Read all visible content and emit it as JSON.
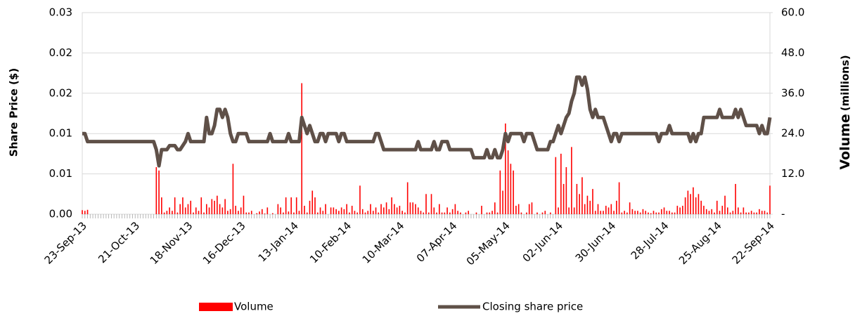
{
  "chart_data": {
    "type": "bar",
    "ylabel": "Share Price ($)",
    "y2label": [
      "Volume",
      "(millions)"
    ],
    "legend": "bottom",
    "grid": true,
    "ylim": [
      0,
      0.025
    ],
    "yticks": [
      {
        "value": 0,
        "label": "0.00"
      },
      {
        "value": 0.005,
        "label": "0.01"
      },
      {
        "value": 0.01,
        "label": "0.01"
      },
      {
        "value": 0.015,
        "label": "0.02"
      },
      {
        "value": 0.02,
        "label": "0.02"
      },
      {
        "value": 0.025,
        "label": "0.03"
      }
    ],
    "y2lim": [
      0,
      60
    ],
    "y2ticks": [
      {
        "value": 0,
        "label": "-"
      },
      {
        "value": 12,
        "label": "12.0"
      },
      {
        "value": 24,
        "label": "24.0"
      },
      {
        "value": 36,
        "label": "36.0"
      },
      {
        "value": 48,
        "label": "48.0"
      },
      {
        "value": 60,
        "label": "60.0"
      }
    ],
    "categories": [
      "23-Sep-13",
      null,
      null,
      null,
      null,
      null,
      null,
      null,
      null,
      null,
      null,
      null,
      null,
      null,
      null,
      null,
      null,
      null,
      null,
      null,
      "21-Oct-13",
      null,
      null,
      null,
      null,
      null,
      null,
      null,
      null,
      null,
      null,
      null,
      null,
      null,
      null,
      null,
      null,
      null,
      null,
      null,
      "18-Nov-13",
      null,
      null,
      null,
      null,
      null,
      null,
      null,
      null,
      null,
      null,
      null,
      null,
      null,
      null,
      null,
      null,
      null,
      null,
      null,
      "16-Dec-13",
      null,
      null,
      null,
      null,
      null,
      null,
      null,
      null,
      null,
      null,
      null,
      null,
      null,
      null,
      null,
      null,
      null,
      null,
      null,
      "13-Jan-14",
      null,
      null,
      null,
      null,
      null,
      null,
      null,
      null,
      null,
      null,
      null,
      null,
      null,
      null,
      null,
      null,
      null,
      null,
      null,
      "10-Feb-14",
      null,
      null,
      null,
      null,
      null,
      null,
      null,
      null,
      null,
      null,
      null,
      null,
      null,
      null,
      null,
      null,
      null,
      null,
      null,
      "10-Mar-14",
      null,
      null,
      null,
      null,
      null,
      null,
      null,
      null,
      null,
      null,
      null,
      null,
      null,
      null,
      null,
      null,
      null,
      null,
      null,
      "07-Apr-14",
      null,
      null,
      null,
      null,
      null,
      null,
      null,
      null,
      null,
      null,
      null,
      null,
      null,
      null,
      null,
      null,
      null,
      null,
      null,
      "05-May-14",
      null,
      null,
      null,
      null,
      null,
      null,
      null,
      null,
      null,
      null,
      null,
      null,
      null,
      null,
      null,
      null,
      null,
      null,
      null,
      "02-Jun-14",
      null,
      null,
      null,
      null,
      null,
      null,
      null,
      null,
      null,
      null,
      null,
      null,
      null,
      null,
      null,
      null,
      null,
      null,
      null,
      "30-Jun-14",
      null,
      null,
      null,
      null,
      null,
      null,
      null,
      null,
      null,
      null,
      null,
      null,
      null,
      null,
      null,
      null,
      null,
      null,
      null,
      "28-Jul-14",
      null,
      null,
      null,
      null,
      null,
      null,
      null,
      null,
      null,
      null,
      null,
      null,
      null,
      null,
      null,
      null,
      null,
      null,
      null,
      "25-Aug-14",
      null,
      null,
      null,
      null,
      null,
      null,
      null,
      null,
      null,
      null,
      null,
      null,
      null,
      null,
      null,
      null,
      null,
      null,
      null,
      "22-Sep-14"
    ],
    "series": [
      {
        "name": "Volume",
        "type": "bar",
        "axis": "y2",
        "color": "#ff0000",
        "values": [
          1.2,
          1,
          1.3,
          0,
          0,
          0,
          0,
          0,
          0,
          0,
          0,
          0,
          0,
          0,
          0,
          0,
          0,
          0,
          0,
          0,
          0,
          0,
          0,
          0,
          0,
          0,
          0,
          0,
          14,
          13,
          5,
          0.5,
          1,
          2,
          1,
          5,
          0.5,
          3,
          5,
          2,
          3,
          4,
          0.5,
          2,
          1,
          5,
          0.5,
          3,
          2,
          4.5,
          4,
          5.5,
          3,
          2,
          4.5,
          1,
          1.5,
          15,
          2.5,
          1,
          2,
          5.5,
          0.5,
          0.5,
          1,
          0,
          0.3,
          0.8,
          1.5,
          0.2,
          2,
          0,
          0.3,
          0,
          3,
          2,
          0.5,
          5,
          0.8,
          5,
          0.5,
          5,
          1,
          39,
          2.5,
          0.5,
          4,
          7,
          5,
          0.5,
          2,
          1,
          3,
          0,
          2,
          2,
          1.5,
          1,
          2,
          1.5,
          3,
          0.5,
          2.5,
          1,
          0.5,
          8.5,
          1.5,
          0.5,
          1,
          3,
          1,
          2,
          0.5,
          3,
          2,
          3.5,
          1.5,
          5,
          3,
          2,
          2.5,
          1,
          0.5,
          9.5,
          3.5,
          3.5,
          3,
          2,
          1,
          0.5,
          6,
          0.5,
          6,
          2,
          0.5,
          3,
          0.5,
          0.5,
          2,
          0.5,
          1.5,
          3,
          1,
          0.5,
          0,
          0.5,
          1,
          0,
          0,
          0.5,
          0,
          2.5,
          0,
          0.5,
          0.5,
          1,
          3.5,
          0.5,
          13,
          7,
          27,
          19,
          15,
          13,
          2.5,
          3,
          0.5,
          0,
          0.5,
          3,
          3.5,
          0,
          0.5,
          0,
          0.5,
          1,
          0,
          0.5,
          0,
          17,
          2,
          18,
          9,
          14,
          2,
          20,
          2,
          9,
          6,
          11,
          3,
          5.5,
          4,
          7.5,
          1,
          3,
          1,
          1,
          2.5,
          2,
          3,
          1,
          4,
          9.5,
          0.5,
          1,
          0.5,
          3.5,
          1.5,
          1,
          1,
          0.5,
          1.5,
          1,
          0.5,
          0.3,
          1,
          0.5,
          0.5,
          1.5,
          2,
          1,
          1,
          0.5,
          0.5,
          2.5,
          2,
          2.5,
          5,
          7,
          6,
          8,
          5,
          6,
          4,
          2.5,
          1.5,
          1,
          1.5,
          0.5,
          4,
          1,
          2.5,
          5.5,
          2,
          0.5,
          1,
          9,
          2,
          0.5,
          2,
          0.5,
          0.5,
          1,
          0.5,
          0.5,
          1.5,
          1,
          1,
          0.5,
          8.5
        ]
      },
      {
        "name": "Closing share price",
        "type": "line",
        "color": "#5f5048",
        "values": [
          0.01,
          0.01,
          0.009,
          0.009,
          0.009,
          0.009,
          0.009,
          0.009,
          0.009,
          0.009,
          0.009,
          0.009,
          0.009,
          0.009,
          0.009,
          0.009,
          0.009,
          0.009,
          0.009,
          0.009,
          0.009,
          0.009,
          0.009,
          0.009,
          0.009,
          0.009,
          0.009,
          0.009,
          0.008,
          0.006,
          0.008,
          0.008,
          0.008,
          0.0085,
          0.0085,
          0.0085,
          0.008,
          0.008,
          0.0085,
          0.009,
          0.01,
          0.009,
          0.009,
          0.009,
          0.009,
          0.009,
          0.009,
          0.012,
          0.01,
          0.01,
          0.011,
          0.013,
          0.013,
          0.012,
          0.013,
          0.012,
          0.01,
          0.009,
          0.009,
          0.01,
          0.01,
          0.01,
          0.01,
          0.009,
          0.009,
          0.009,
          0.009,
          0.009,
          0.009,
          0.009,
          0.009,
          0.01,
          0.009,
          0.009,
          0.009,
          0.009,
          0.009,
          0.009,
          0.01,
          0.009,
          0.009,
          0.009,
          0.009,
          0.012,
          0.011,
          0.01,
          0.011,
          0.01,
          0.009,
          0.009,
          0.01,
          0.01,
          0.009,
          0.01,
          0.01,
          0.01,
          0.01,
          0.009,
          0.01,
          0.01,
          0.009,
          0.009,
          0.009,
          0.009,
          0.009,
          0.009,
          0.009,
          0.009,
          0.009,
          0.009,
          0.009,
          0.01,
          0.01,
          0.009,
          0.008,
          0.008,
          0.008,
          0.008,
          0.008,
          0.008,
          0.008,
          0.008,
          0.008,
          0.008,
          0.008,
          0.008,
          0.008,
          0.009,
          0.008,
          0.008,
          0.008,
          0.008,
          0.008,
          0.009,
          0.008,
          0.008,
          0.009,
          0.009,
          0.009,
          0.008,
          0.008,
          0.008,
          0.008,
          0.008,
          0.008,
          0.008,
          0.008,
          0.008,
          0.007,
          0.007,
          0.007,
          0.007,
          0.007,
          0.008,
          0.007,
          0.007,
          0.008,
          0.007,
          0.007,
          0.008,
          0.01,
          0.009,
          0.01,
          0.01,
          0.01,
          0.01,
          0.01,
          0.009,
          0.01,
          0.01,
          0.01,
          0.009,
          0.008,
          0.008,
          0.008,
          0.008,
          0.008,
          0.009,
          0.009,
          0.01,
          0.011,
          0.01,
          0.011,
          0.012,
          0.0125,
          0.014,
          0.015,
          0.017,
          0.017,
          0.016,
          0.017,
          0.0155,
          0.013,
          0.012,
          0.013,
          0.012,
          0.012,
          0.012,
          0.011,
          0.01,
          0.009,
          0.01,
          0.01,
          0.009,
          0.01,
          0.01,
          0.01,
          0.01,
          0.01,
          0.01,
          0.01,
          0.01,
          0.01,
          0.01,
          0.01,
          0.01,
          0.01,
          0.01,
          0.009,
          0.01,
          0.01,
          0.01,
          0.011,
          0.01,
          0.01,
          0.01,
          0.01,
          0.01,
          0.01,
          0.01,
          0.009,
          0.01,
          0.009,
          0.01,
          0.01,
          0.012,
          0.012,
          0.012,
          0.012,
          0.012,
          0.012,
          0.013,
          0.012,
          0.012,
          0.012,
          0.012,
          0.012,
          0.013,
          0.012,
          0.013,
          0.012,
          0.011,
          0.011,
          0.011,
          0.011,
          0.011,
          0.01,
          0.011,
          0.01,
          0.01,
          0.012
        ]
      }
    ]
  }
}
